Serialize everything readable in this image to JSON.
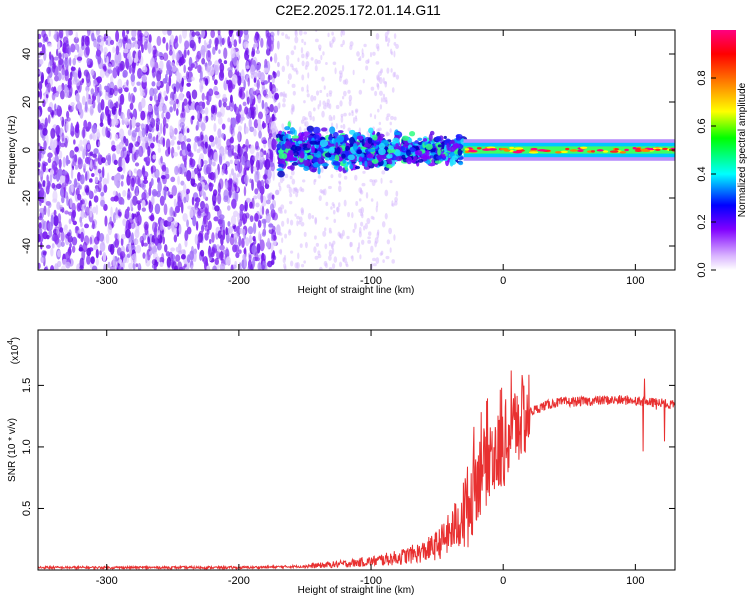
{
  "title": "C2E2.2025.172.01.14.G11",
  "chart_data": [
    {
      "type": "heatmap",
      "xlabel": "Height of straight line (km)",
      "ylabel": "Frequency (Hz)",
      "xlim": [
        -352,
        130
      ],
      "ylim": [
        -50,
        50
      ],
      "x_ticks": [
        -300,
        -200,
        -100,
        0,
        100
      ],
      "y_ticks": [
        -40,
        -20,
        0,
        20,
        40
      ],
      "colorbar": {
        "label": "Normalized spectral amplitude",
        "range": [
          0,
          1
        ],
        "ticks": [
          0.0,
          0.2,
          0.4,
          0.6,
          0.8
        ],
        "colors": [
          "#ffffff",
          "#d9b3ff",
          "#8000ff",
          "#0000ff",
          "#00ffff",
          "#00ff00",
          "#ffff00",
          "#ff8000",
          "#ff0000",
          "#ff0080"
        ]
      },
      "regions": [
        {
          "x": [
            -352,
            -170
          ],
          "f": [
            -50,
            50
          ],
          "amplitude": "low, noise-dominated"
        },
        {
          "x": [
            -170,
            -30
          ],
          "f": [
            -12,
            12
          ],
          "amplitude": "moderate, scattered near 0 Hz"
        },
        {
          "x": [
            -30,
            130
          ],
          "f": [
            -4,
            4
          ],
          "amplitude": "high, narrow band centered at 0 Hz"
        }
      ]
    },
    {
      "type": "line",
      "xlabel": "Height of straight line (km)",
      "ylabel": "SNR (10 * v/v)",
      "multiplier": "(x10",
      "multiplier_exp": "4",
      "multiplier_close": ")",
      "xlim": [
        -352,
        130
      ],
      "ylim": [
        0,
        1.95
      ],
      "x_ticks": [
        -300,
        -200,
        -100,
        0,
        100
      ],
      "y_ticks": [
        0.5,
        1.0,
        1.5
      ],
      "color": "#e83030",
      "series": [
        {
          "x": [
            -352,
            -300,
            -250,
            -200,
            -170,
            -150,
            -120,
            -100,
            -80,
            -60,
            -50,
            -40,
            -30,
            -25,
            -20,
            -15,
            -10,
            -5,
            0,
            10,
            20,
            30,
            40,
            60,
            80,
            100,
            110,
            120,
            125,
            130
          ],
          "values": [
            0.02,
            0.02,
            0.02,
            0.02,
            0.025,
            0.03,
            0.05,
            0.07,
            0.1,
            0.15,
            0.2,
            0.3,
            0.45,
            0.55,
            0.75,
            0.8,
            0.95,
            0.92,
            1.0,
            1.2,
            1.28,
            1.33,
            1.36,
            1.37,
            1.38,
            1.38,
            1.36,
            1.36,
            1.34,
            1.34
          ]
        }
      ]
    }
  ]
}
